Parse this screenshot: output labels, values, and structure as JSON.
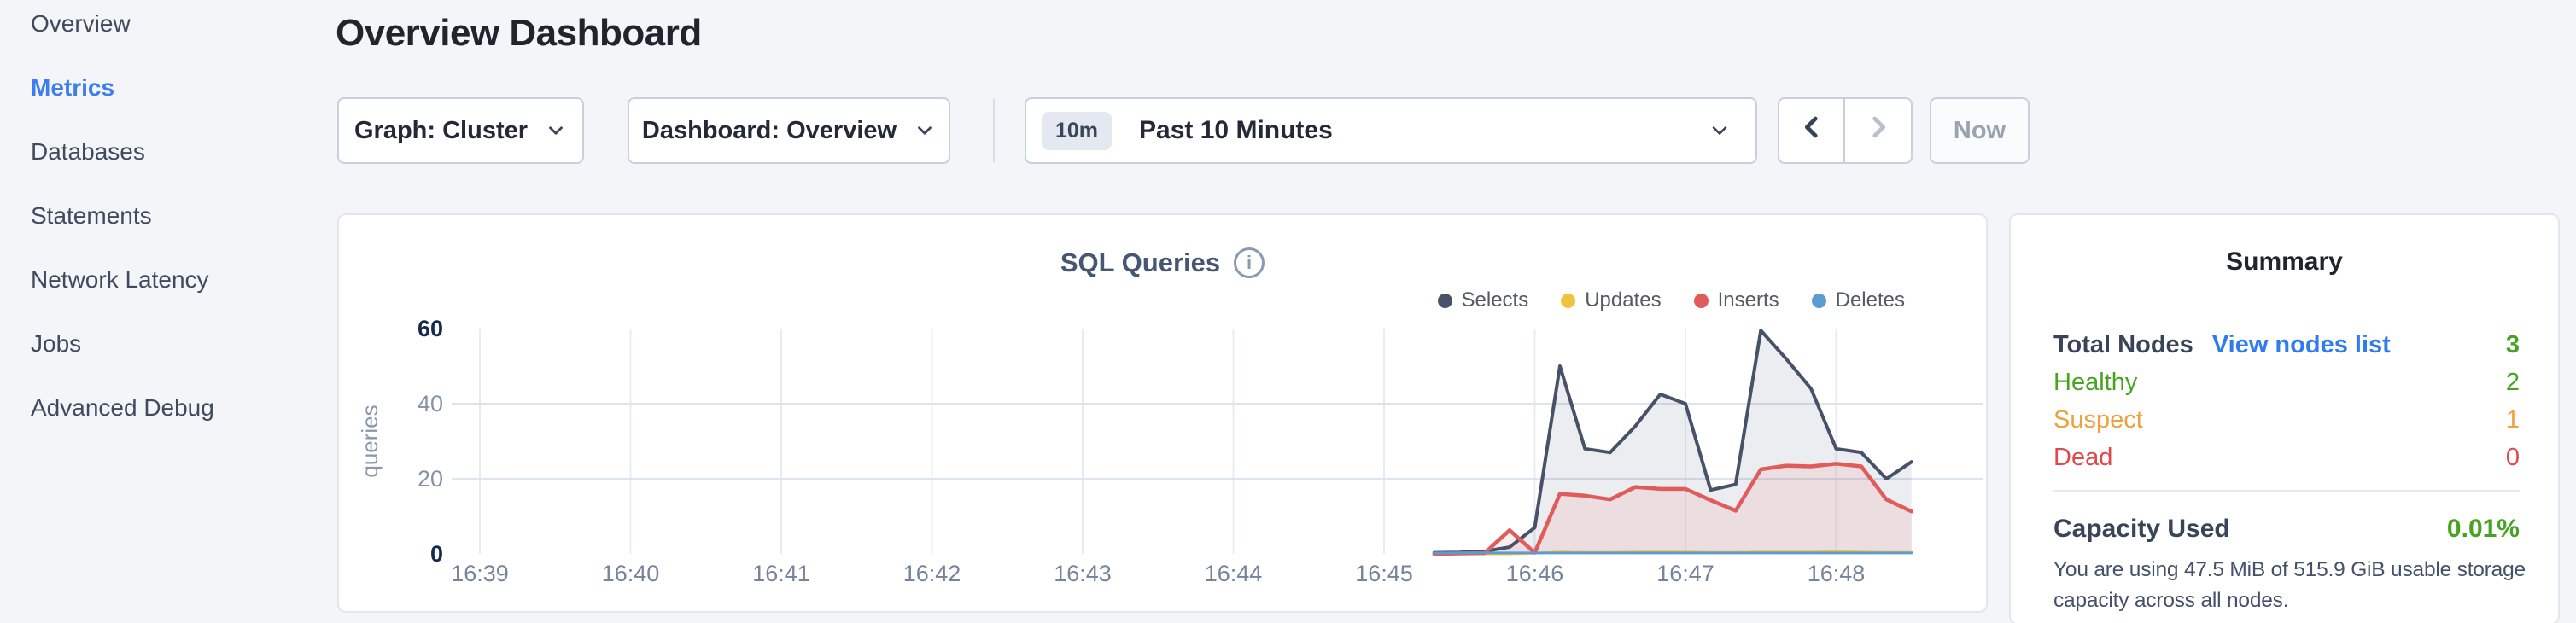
{
  "sidebar": {
    "items": [
      {
        "label": "Overview",
        "active": false
      },
      {
        "label": "Metrics",
        "active": true
      },
      {
        "label": "Databases",
        "active": false
      },
      {
        "label": "Statements",
        "active": false
      },
      {
        "label": "Network Latency",
        "active": false
      },
      {
        "label": "Jobs",
        "active": false
      },
      {
        "label": "Advanced Debug",
        "active": false
      }
    ]
  },
  "header": {
    "title": "Overview Dashboard"
  },
  "controls": {
    "graph_selector": {
      "label": "Graph: Cluster"
    },
    "dashboard_selector": {
      "label": "Dashboard: Overview"
    },
    "time_window": {
      "badge": "10m",
      "label": "Past 10 Minutes"
    },
    "now_button": {
      "label": "Now"
    }
  },
  "chart_card": {
    "title": "SQL Queries"
  },
  "chart_data": {
    "type": "area",
    "title": "SQL Queries",
    "xlabel": "",
    "ylabel": "queries",
    "ylim": [
      0,
      60
    ],
    "grid": true,
    "legend_position": "top-right",
    "x_ticks": [
      "16:39",
      "16:40",
      "16:41",
      "16:42",
      "16:43",
      "16:44",
      "16:45",
      "16:46",
      "16:47",
      "16:48"
    ],
    "y_ticks": [
      0,
      20,
      40,
      60
    ],
    "x_minutes": [
      45.333,
      45.5,
      45.667,
      45.833,
      46.0,
      46.167,
      46.333,
      46.5,
      46.667,
      46.833,
      47.0,
      47.167,
      47.333,
      47.5,
      47.667,
      47.833,
      48.0,
      48.167,
      48.333,
      48.5
    ],
    "series": [
      {
        "name": "Selects",
        "color": "#475168",
        "fill": "rgba(71,81,104,0.10)",
        "values": [
          0.3,
          0.4,
          0.7,
          1.8,
          7,
          50,
          28,
          27,
          34,
          42.5,
          40,
          17,
          18.5,
          59.5,
          52,
          44,
          28,
          27,
          20,
          24.5
        ]
      },
      {
        "name": "Updates",
        "color": "#f0c33f",
        "fill": null,
        "values": [
          0,
          0,
          0,
          0,
          0.2,
          0.5,
          0.4,
          0.4,
          0.5,
          0.5,
          0.5,
          0.4,
          0.4,
          0.5,
          0.5,
          0.5,
          0.6,
          0.5,
          0.4,
          0.4
        ]
      },
      {
        "name": "Inserts",
        "color": "#e05c5b",
        "fill": "rgba(224,92,91,0.10)",
        "values": [
          0,
          0.1,
          0.2,
          6.3,
          0.3,
          16,
          15.5,
          14.5,
          17.8,
          17.3,
          17.3,
          14.3,
          11.5,
          22.5,
          23.5,
          23.3,
          24,
          23.3,
          14.5,
          11.3
        ]
      },
      {
        "name": "Deletes",
        "color": "#5d9bd3",
        "fill": null,
        "values": [
          0.25,
          0.25,
          0.25,
          0.25,
          0.25,
          0.25,
          0.25,
          0.25,
          0.25,
          0.25,
          0.25,
          0.25,
          0.25,
          0.25,
          0.25,
          0.25,
          0.25,
          0.25,
          0.25,
          0.25
        ]
      }
    ]
  },
  "summary": {
    "title": "Summary",
    "total_nodes": {
      "label": "Total Nodes",
      "link": "View nodes list",
      "value": "3"
    },
    "rows": [
      {
        "label": "Healthy",
        "value": "2",
        "color": "#47a321"
      },
      {
        "label": "Suspect",
        "value": "1",
        "color": "#eea13e"
      },
      {
        "label": "Dead",
        "value": "0",
        "color": "#e1484b"
      }
    ],
    "capacity": {
      "label": "Capacity Used",
      "value": "0.01%",
      "note_line1": "You are using 47.5 MiB of 515.9 GiB usable storage",
      "note_line2": "capacity across all nodes."
    }
  },
  "colors": {
    "accent_blue": "#3d7df0",
    "link_blue": "#2e7cf0",
    "healthy_green": "#47a321",
    "suspect_orange": "#eea13e",
    "dead_red": "#e1484b",
    "selects": "#475168",
    "updates": "#f0c33f",
    "inserts": "#e05c5b",
    "deletes": "#5d9bd3"
  }
}
